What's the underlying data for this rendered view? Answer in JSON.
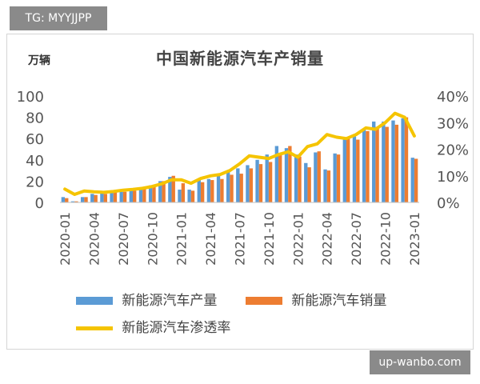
{
  "watermark_top": "TG: MYYJJPP",
  "watermark_bottom": "up-wanbo.com",
  "chart_data": {
    "type": "bar",
    "title": "中国新能源汽车产销量",
    "ylabel": "万辆",
    "ylim": [
      0,
      100
    ],
    "y2lim": [
      0,
      40
    ],
    "yticks": [
      "0",
      "20",
      "40",
      "60",
      "80",
      "100"
    ],
    "y2ticks": [
      "0%",
      "10%",
      "20%",
      "30%",
      "40%"
    ],
    "x_tick_labels": [
      "2020-01",
      "2020-04",
      "2020-07",
      "2020-10",
      "2021-01",
      "2021-04",
      "2021-07",
      "2021-10",
      "2022-01",
      "2022-04",
      "2022-07",
      "2022-10",
      "2023-01"
    ],
    "categories": [
      "2020-01",
      "2020-02",
      "2020-03",
      "2020-04",
      "2020-05",
      "2020-06",
      "2020-07",
      "2020-08",
      "2020-09",
      "2020-10",
      "2020-11",
      "2020-12",
      "2021-01",
      "2021-02",
      "2021-03",
      "2021-04",
      "2021-05",
      "2021-06",
      "2021-07",
      "2021-08",
      "2021-09",
      "2021-10",
      "2021-11",
      "2021-12",
      "2022-01",
      "2022-02",
      "2022-03",
      "2022-04",
      "2022-05",
      "2022-06",
      "2022-07",
      "2022-08",
      "2022-09",
      "2022-10",
      "2022-11",
      "2022-12",
      "2023-01"
    ],
    "series": [
      {
        "name": "新能源汽车产量",
        "axis": "left",
        "kind": "bar",
        "color": "#5B9BD5",
        "values": [
          5,
          1,
          5,
          8,
          9,
          10,
          10,
          11,
          13,
          16,
          20,
          24,
          12,
          12,
          21,
          22,
          25,
          29,
          32,
          35,
          40,
          45,
          53,
          51,
          45,
          37,
          47,
          31,
          46,
          59,
          62,
          69,
          76,
          76,
          77,
          79,
          42
        ]
      },
      {
        "name": "新能源汽车销量",
        "axis": "left",
        "kind": "bar",
        "color": "#ED7D31",
        "values": [
          4,
          1,
          5,
          7,
          8,
          10,
          10,
          11,
          14,
          16,
          20,
          25,
          18,
          11,
          19,
          21,
          22,
          26,
          27,
          32,
          36,
          38,
          45,
          53,
          43,
          33,
          48,
          30,
          45,
          60,
          59,
          67,
          71,
          71,
          73,
          80,
          41
        ]
      },
      {
        "name": "新能源汽车渗透率",
        "axis": "right",
        "kind": "line",
        "color": "#F5C400",
        "values": [
          5,
          3,
          4.3,
          4,
          3.8,
          4.1,
          4.6,
          4.9,
          5.3,
          6,
          7,
          8.5,
          8.5,
          7.2,
          9,
          10,
          10.5,
          12,
          14.5,
          17.5,
          17,
          16.5,
          18,
          19,
          17,
          21,
          22,
          25.5,
          24.5,
          24,
          25.5,
          28,
          27.5,
          30,
          33.5,
          32,
          25
        ]
      }
    ],
    "legend_position": "bottom",
    "grid": false
  }
}
